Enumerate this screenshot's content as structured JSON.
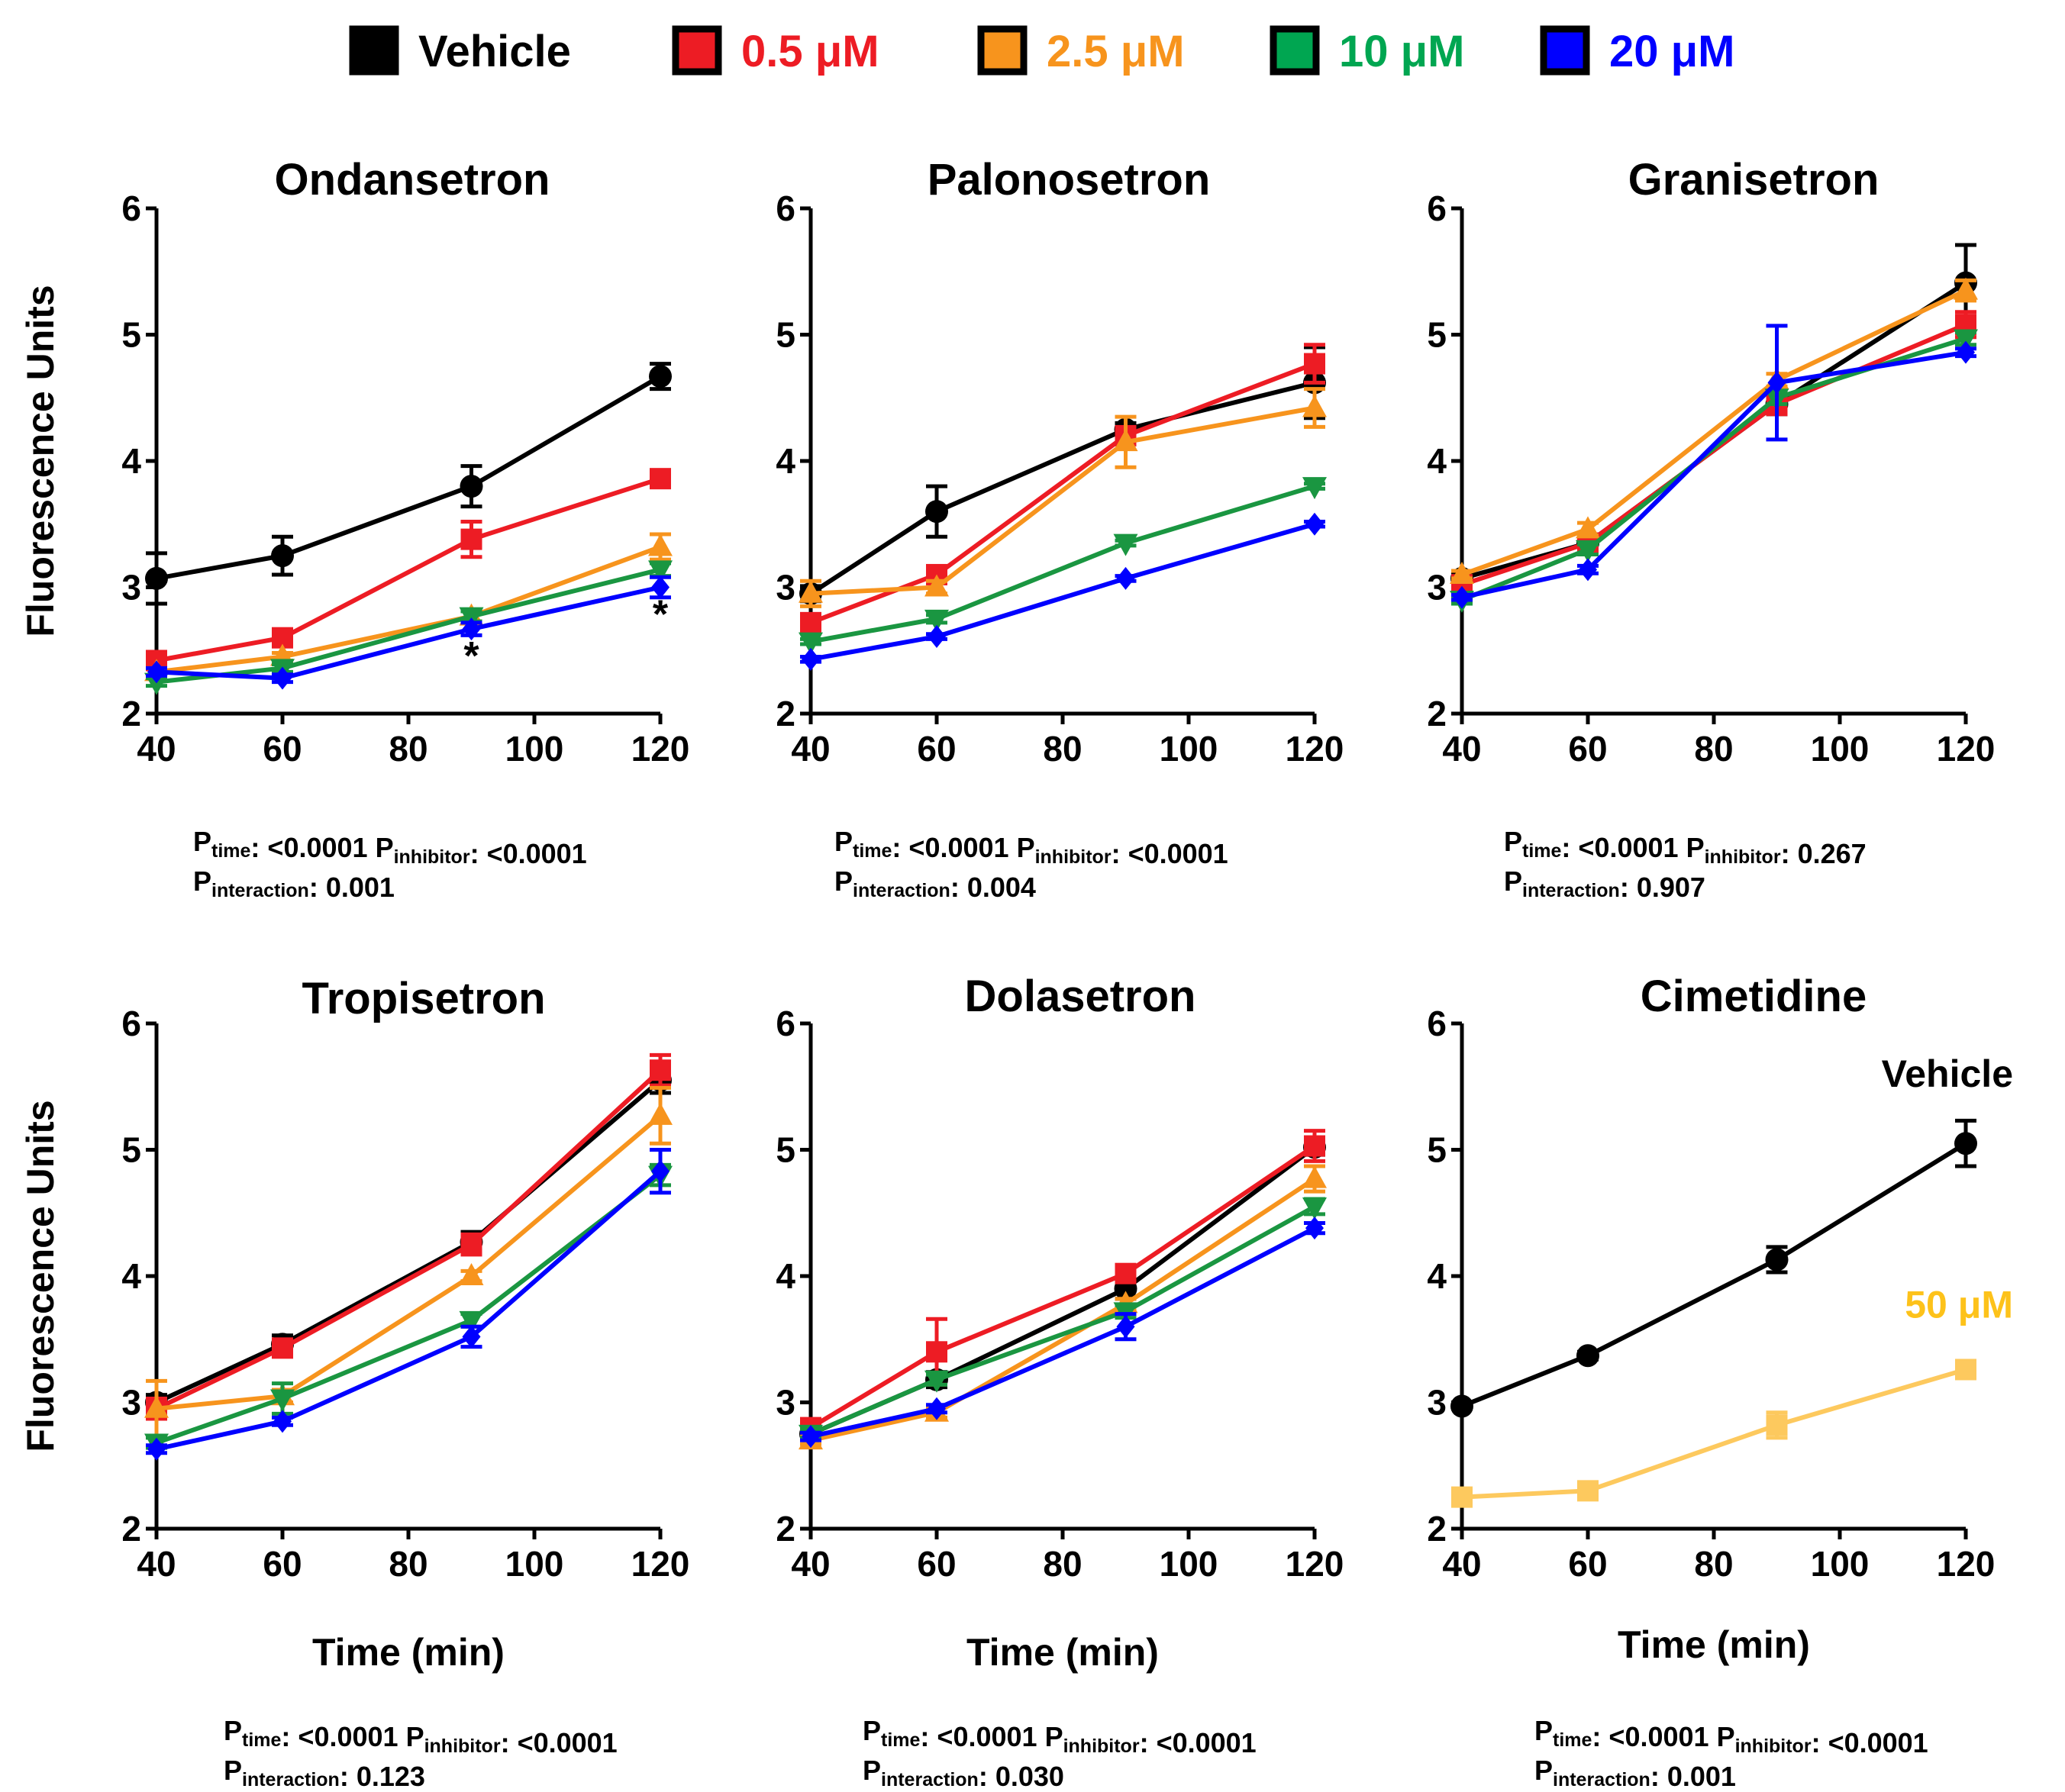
{
  "legend": [
    {
      "label": "Vehicle",
      "color": "#000000",
      "text_color": "#000000"
    },
    {
      "label": "0.5 μM",
      "color": "#ed1c24",
      "text_color": "#ed1c24"
    },
    {
      "label": "2.5 μM",
      "color": "#f7941d",
      "text_color": "#f7941d"
    },
    {
      "label": "10 μM",
      "color": "#00a651",
      "text_color": "#00a651"
    },
    {
      "label": "20 μM",
      "color": "#0000ff",
      "text_color": "#0000ff"
    }
  ],
  "xlabel": "Time (min)",
  "ylabel": "Fluorescence Units",
  "chart_data": [
    {
      "type": "line",
      "title": "Ondansetron",
      "x": [
        40,
        60,
        90,
        120
      ],
      "xlim": [
        40,
        120
      ],
      "ylim": [
        2,
        6
      ],
      "xticks": [
        40,
        60,
        80,
        100,
        120
      ],
      "yticks": [
        2,
        3,
        4,
        5,
        6
      ],
      "series": [
        {
          "name": "Vehicle",
          "marker": "circle",
          "color": "#000000",
          "values": [
            3.07,
            3.25,
            3.8,
            4.67
          ],
          "errors": [
            0.2,
            0.15,
            0.16,
            0.1
          ]
        },
        {
          "name": "0.5 μM",
          "marker": "square",
          "color": "#ed1c24",
          "values": [
            2.42,
            2.6,
            3.38,
            3.86
          ],
          "errors": [
            0.04,
            0.04,
            0.14,
            0.04
          ]
        },
        {
          "name": "2.5 μM",
          "marker": "triangle-up",
          "color": "#f7941d",
          "values": [
            2.33,
            2.45,
            2.77,
            3.32
          ],
          "errors": [
            0.03,
            0.03,
            0.04,
            0.1
          ]
        },
        {
          "name": "10 μM",
          "marker": "triangle-down",
          "color": "#1a9641",
          "values": [
            2.25,
            2.36,
            2.77,
            3.14
          ],
          "errors": [
            0.03,
            0.03,
            0.04,
            0.05
          ]
        },
        {
          "name": "20 μM",
          "marker": "diamond",
          "color": "#0000ff",
          "values": [
            2.33,
            2.28,
            2.67,
            3.0
          ],
          "errors": [
            0.03,
            0.03,
            0.05,
            0.08
          ]
        }
      ],
      "annotations": [
        {
          "text": "*",
          "x": 90,
          "y": 2.47
        },
        {
          "text": "*",
          "x": 120,
          "y": 2.8
        }
      ],
      "pvalues": {
        "time": "<0.0001",
        "inhibitor": "<0.0001",
        "interaction": "0.001"
      }
    },
    {
      "type": "line",
      "title": "Palonosetron",
      "x": [
        40,
        60,
        90,
        120
      ],
      "xlim": [
        40,
        120
      ],
      "ylim": [
        2,
        6
      ],
      "xticks": [
        40,
        60,
        80,
        100,
        120
      ],
      "yticks": [
        2,
        3,
        4,
        5,
        6
      ],
      "series": [
        {
          "name": "Vehicle",
          "marker": "circle",
          "color": "#000000",
          "values": [
            2.95,
            3.6,
            4.25,
            4.62
          ],
          "errors": [
            0.06,
            0.2,
            0.05,
            0.28
          ]
        },
        {
          "name": "0.5 μM",
          "marker": "square",
          "color": "#ed1c24",
          "values": [
            2.72,
            3.1,
            4.2,
            4.77
          ],
          "errors": [
            0.05,
            0.04,
            0.05,
            0.15
          ]
        },
        {
          "name": "2.5 μM",
          "marker": "triangle-up",
          "color": "#f7941d",
          "values": [
            2.95,
            3.0,
            4.15,
            4.42
          ],
          "errors": [
            0.1,
            0.05,
            0.2,
            0.15
          ]
        },
        {
          "name": "10 μM",
          "marker": "triangle-down",
          "color": "#1a9641",
          "values": [
            2.57,
            2.75,
            3.35,
            3.8
          ],
          "errors": [
            0.02,
            0.03,
            0.02,
            0.02
          ]
        },
        {
          "name": "20 μM",
          "marker": "diamond",
          "color": "#0000ff",
          "values": [
            2.43,
            2.61,
            3.07,
            3.5
          ],
          "errors": [
            0.02,
            0.02,
            0.02,
            0.02
          ]
        }
      ],
      "annotations": [],
      "pvalues": {
        "time": "<0.0001",
        "inhibitor": "<0.0001",
        "interaction": "0.004"
      }
    },
    {
      "type": "line",
      "title": "Granisetron",
      "x": [
        40,
        60,
        90,
        120
      ],
      "xlim": [
        40,
        120
      ],
      "ylim": [
        2,
        6
      ],
      "xticks": [
        40,
        60,
        80,
        100,
        120
      ],
      "yticks": [
        2,
        3,
        4,
        5,
        6
      ],
      "series": [
        {
          "name": "Vehicle",
          "marker": "circle",
          "color": "#000000",
          "values": [
            3.07,
            3.35,
            4.45,
            5.41
          ],
          "errors": [
            0.04,
            0.06,
            0.08,
            0.3
          ]
        },
        {
          "name": "0.5 μM",
          "marker": "square",
          "color": "#ed1c24",
          "values": [
            3.02,
            3.35,
            4.45,
            5.08
          ],
          "errors": [
            0.03,
            0.05,
            0.08,
            0.1
          ]
        },
        {
          "name": "2.5 μM",
          "marker": "triangle-up",
          "color": "#f7941d",
          "values": [
            3.1,
            3.46,
            4.64,
            5.35
          ],
          "errors": [
            0.03,
            0.05,
            0.05,
            0.08
          ]
        },
        {
          "name": "10 μM",
          "marker": "triangle-down",
          "color": "#1a9641",
          "values": [
            2.9,
            3.3,
            4.5,
            4.97
          ],
          "errors": [
            0.03,
            0.04,
            0.05,
            0.05
          ]
        },
        {
          "name": "20 μM",
          "marker": "diamond",
          "color": "#0000ff",
          "values": [
            2.92,
            3.14,
            4.62,
            4.86
          ],
          "errors": [
            0.02,
            0.03,
            0.45,
            0.03
          ]
        }
      ],
      "annotations": [],
      "pvalues": {
        "time": "<0.0001",
        "inhibitor": "0.267",
        "interaction": "0.907"
      }
    },
    {
      "type": "line",
      "title": "Tropisetron",
      "x": [
        40,
        60,
        90,
        120
      ],
      "xlim": [
        40,
        120
      ],
      "ylim": [
        2,
        6
      ],
      "xticks": [
        40,
        60,
        80,
        100,
        120
      ],
      "yticks": [
        2,
        3,
        4,
        5,
        6
      ],
      "series": [
        {
          "name": "Vehicle",
          "marker": "circle",
          "color": "#000000",
          "values": [
            3.0,
            3.46,
            4.27,
            5.55
          ],
          "errors": [
            0.06,
            0.07,
            0.08,
            0.1
          ]
        },
        {
          "name": "0.5 μM",
          "marker": "square",
          "color": "#ed1c24",
          "values": [
            2.95,
            3.43,
            4.25,
            5.63
          ],
          "errors": [
            0.08,
            0.06,
            0.08,
            0.12
          ]
        },
        {
          "name": "2.5 μM",
          "marker": "triangle-up",
          "color": "#f7941d",
          "values": [
            2.95,
            3.05,
            4.0,
            5.27
          ],
          "errors": [
            0.22,
            0.05,
            0.04,
            0.22
          ]
        },
        {
          "name": "10 μM",
          "marker": "triangle-down",
          "color": "#1a9641",
          "values": [
            2.68,
            3.03,
            3.65,
            4.8
          ],
          "errors": [
            0.04,
            0.12,
            0.05,
            0.08
          ]
        },
        {
          "name": "20 μM",
          "marker": "diamond",
          "color": "#0000ff",
          "values": [
            2.63,
            2.85,
            3.52,
            4.83
          ],
          "errors": [
            0.03,
            0.03,
            0.08,
            0.17
          ]
        }
      ],
      "annotations": [],
      "pvalues": {
        "time": "<0.0001",
        "inhibitor": "<0.0001",
        "interaction": "0.123"
      }
    },
    {
      "type": "line",
      "title": "Dolasetron",
      "x": [
        40,
        60,
        90,
        120
      ],
      "xlim": [
        40,
        120
      ],
      "ylim": [
        2,
        6
      ],
      "xticks": [
        40,
        60,
        80,
        100,
        120
      ],
      "yticks": [
        2,
        3,
        4,
        5,
        6
      ],
      "series": [
        {
          "name": "Vehicle",
          "marker": "circle",
          "color": "#000000",
          "values": [
            2.75,
            3.18,
            3.9,
            5.02
          ],
          "errors": [
            0.04,
            0.06,
            0.08,
            0.06
          ]
        },
        {
          "name": "0.5 μM",
          "marker": "square",
          "color": "#ed1c24",
          "values": [
            2.8,
            3.4,
            4.02,
            5.03
          ],
          "errors": [
            0.04,
            0.26,
            0.06,
            0.12
          ]
        },
        {
          "name": "2.5 μM",
          "marker": "triangle-up",
          "color": "#f7941d",
          "values": [
            2.7,
            2.92,
            3.78,
            4.77
          ],
          "errors": [
            0.03,
            0.04,
            0.04,
            0.1
          ]
        },
        {
          "name": "10 μM",
          "marker": "triangle-down",
          "color": "#1a9641",
          "values": [
            2.75,
            3.18,
            3.72,
            4.55
          ],
          "errors": [
            0.03,
            0.04,
            0.05,
            0.06
          ]
        },
        {
          "name": "20 μM",
          "marker": "diamond",
          "color": "#0000ff",
          "values": [
            2.73,
            2.95,
            3.6,
            4.38
          ],
          "errors": [
            0.03,
            0.03,
            0.1,
            0.04
          ]
        }
      ],
      "annotations": [],
      "pvalues": {
        "time": "<0.0001",
        "inhibitor": "<0.0001",
        "interaction": "0.030"
      }
    },
    {
      "type": "line",
      "title": "Cimetidine",
      "x": [
        40,
        60,
        90,
        120
      ],
      "xlim": [
        40,
        120
      ],
      "ylim": [
        2,
        6
      ],
      "xticks": [
        40,
        60,
        80,
        100,
        120
      ],
      "yticks": [
        2,
        3,
        4,
        5,
        6
      ],
      "series": [
        {
          "name": "Vehicle",
          "marker": "circle",
          "color": "#000000",
          "values": [
            2.97,
            3.37,
            4.13,
            5.05
          ],
          "errors": [
            0.02,
            0.03,
            0.1,
            0.18
          ]
        },
        {
          "name": "50 μM",
          "marker": "square",
          "color": "#fdc95e",
          "values": [
            2.25,
            2.3,
            2.82,
            3.26
          ],
          "errors": [
            0.03,
            0.03,
            0.1,
            0.04
          ]
        }
      ],
      "series_labels": [
        {
          "text": "Vehicle",
          "color": "#000000",
          "x": 120,
          "y": 5.5
        },
        {
          "text": "50 μM",
          "color": "#fdc21a",
          "x": 120,
          "y": 3.67
        }
      ],
      "annotations": [],
      "pvalues": {
        "time": "<0.0001",
        "inhibitor": "<0.0001",
        "interaction": "0.001"
      }
    }
  ]
}
